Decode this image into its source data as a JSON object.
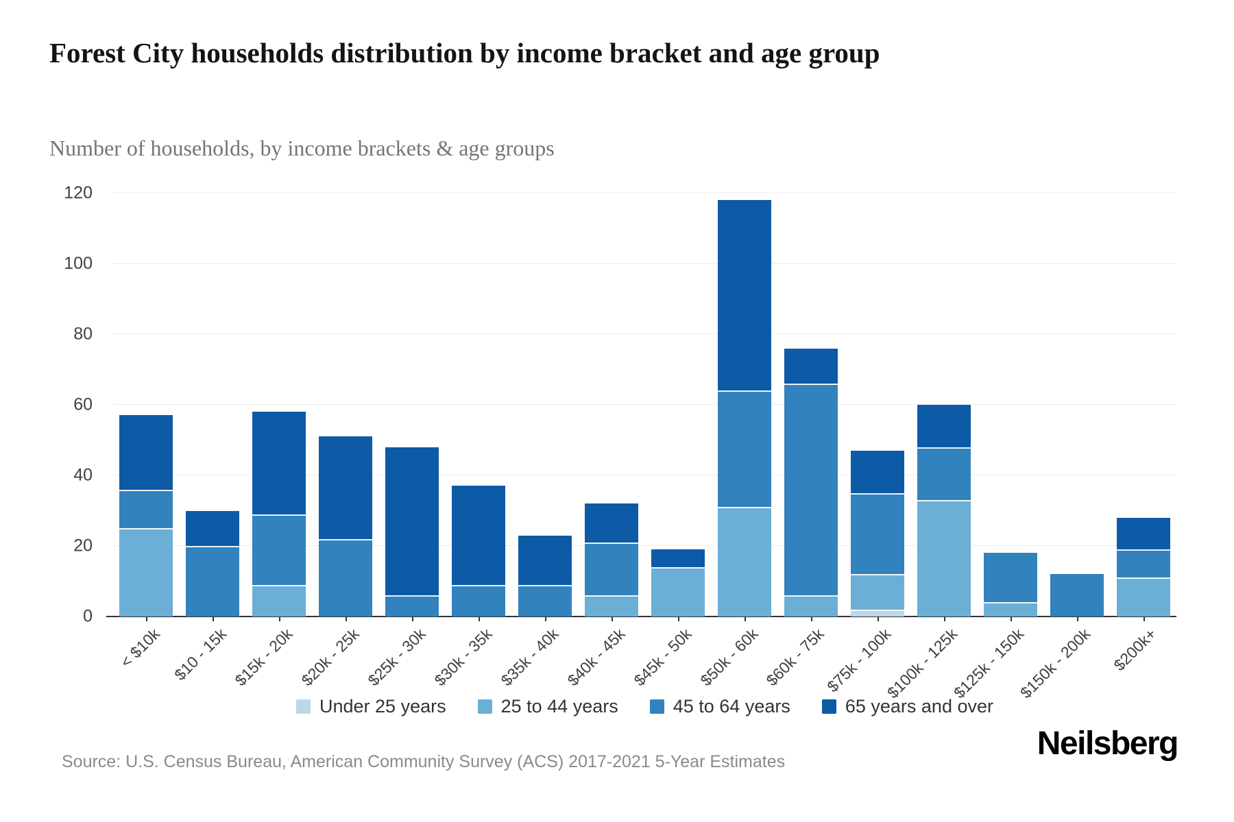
{
  "title": "Forest City households distribution by income bracket and age group",
  "subtitle": "Number of households, by income brackets & age groups",
  "source": "Source: U.S. Census Bureau, American Community Survey (ACS) 2017-2021 5-Year Estimates",
  "logo": "Neilsberg",
  "colors": {
    "under_25": "#bdd7e7",
    "age_25_44": "#6baed6",
    "age_45_64": "#3182bd",
    "age_65_plus": "#0d5aa6",
    "grid": "#ececec",
    "axis": "#333333",
    "title_text": "#141414",
    "subtitle_text": "#757575",
    "tick_text": "#404040",
    "source_text": "#8a8a8a"
  },
  "chart_data": {
    "type": "bar",
    "stacked": true,
    "grid": true,
    "legend_position": "bottom",
    "title": "Forest City households distribution by income bracket and age group",
    "subtitle": "Number of households, by income brackets & age groups",
    "xlabel": "",
    "ylabel": "",
    "ylim": [
      0,
      120
    ],
    "yticks": [
      0,
      20,
      40,
      60,
      80,
      100,
      120
    ],
    "categories": [
      "< $10k",
      "$10 - 15k",
      "$15k - 20k",
      "$20k - 25k",
      "$25k - 30k",
      "$30k - 35k",
      "$35k - 40k",
      "$40k - 45k",
      "$45k - 50k",
      "$50k - 60k",
      "$60k - 75k",
      "$75k - 100k",
      "$100k - 125k",
      "$125k - 150k",
      "$150k - 200k",
      "$200k+"
    ],
    "series": [
      {
        "name": "Under 25 years",
        "color": "#bdd7e7",
        "values": [
          0,
          0,
          0,
          0,
          0,
          0,
          0,
          0,
          0,
          0,
          0,
          2,
          0,
          0,
          0,
          0
        ]
      },
      {
        "name": "25 to 44 years",
        "color": "#6baed6",
        "values": [
          25,
          0,
          9,
          0,
          0,
          0,
          0,
          6,
          14,
          31,
          6,
          10,
          33,
          4,
          0,
          11
        ]
      },
      {
        "name": "45 to 64 years",
        "color": "#3182bd",
        "values": [
          11,
          20,
          20,
          22,
          6,
          9,
          9,
          15,
          0,
          33,
          60,
          23,
          15,
          14,
          12,
          8
        ]
      },
      {
        "name": "65 years and over",
        "color": "#0d5aa6",
        "values": [
          21,
          10,
          29,
          29,
          42,
          28,
          14,
          11,
          5,
          54,
          10,
          12,
          12,
          0,
          0,
          9
        ]
      }
    ],
    "totals": [
      57,
      30,
      58,
      51,
      48,
      37,
      23,
      32,
      19,
      118,
      76,
      47,
      60,
      18,
      12,
      28
    ]
  }
}
